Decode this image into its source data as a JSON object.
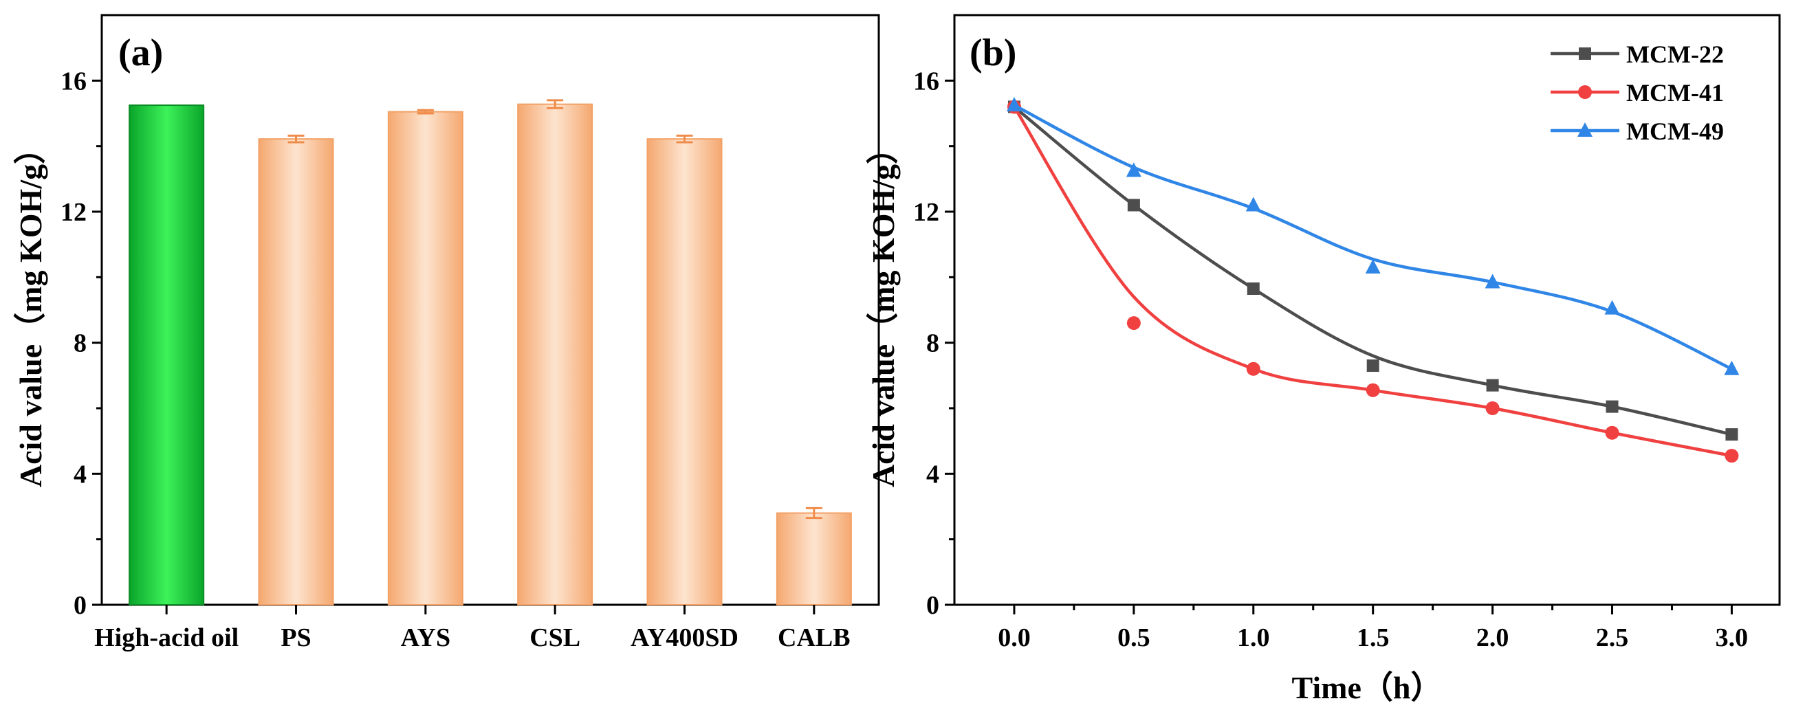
{
  "chart_data": [
    {
      "type": "bar",
      "panel_label": "(a)",
      "title": "",
      "xlabel": "",
      "ylabel": "Acid value（mg KOH/g）",
      "ylim": [
        0,
        18
      ],
      "yticks": [
        "0",
        "4",
        "8",
        "12",
        "16"
      ],
      "categories": [
        "High-acid oil",
        "PS",
        "AYS",
        "CSL",
        "AY400SD",
        "CALB"
      ],
      "values": [
        15.25,
        14.22,
        15.05,
        15.28,
        14.22,
        2.8
      ],
      "errors": [
        0,
        0.1,
        0.05,
        0.12,
        0.1,
        0.15
      ],
      "colors": {
        "first": "#1fd63f",
        "others": "#f7b98c",
        "error": "#f08c4a"
      }
    },
    {
      "type": "line",
      "panel_label": "(b)",
      "title": "",
      "xlabel": "Time（h）",
      "ylabel": "Acid value（mg KOH/g）",
      "xlim": [
        -0.25,
        3.2
      ],
      "ylim": [
        0,
        18
      ],
      "xticks": [
        "0.0",
        "0.5",
        "1.0",
        "1.5",
        "2.0",
        "2.5",
        "3.0"
      ],
      "yticks": [
        "0",
        "4",
        "8",
        "12",
        "16"
      ],
      "x": [
        0,
        0.5,
        1.0,
        1.5,
        2.0,
        2.5,
        3.0
      ],
      "legend_position": "top-right",
      "series": [
        {
          "name": "MCM-22",
          "marker": "square",
          "color": "#4d4d4d",
          "values": [
            15.2,
            12.2,
            9.65,
            7.3,
            6.7,
            6.05,
            5.2
          ],
          "fit": [
            15.2,
            12.2,
            9.65,
            7.6,
            6.7,
            6.05,
            5.2
          ]
        },
        {
          "name": "MCM-41",
          "marker": "circle",
          "color": "#f04040",
          "values": [
            15.2,
            8.6,
            7.2,
            6.55,
            6.0,
            5.25,
            4.55
          ],
          "fit": [
            15.2,
            9.4,
            7.2,
            6.55,
            6.0,
            5.25,
            4.55
          ]
        },
        {
          "name": "MCM-49",
          "marker": "triangle",
          "color": "#2f86e6",
          "values": [
            15.25,
            13.25,
            12.2,
            10.3,
            9.85,
            9.05,
            7.2
          ],
          "fit": [
            15.25,
            13.35,
            12.1,
            10.55,
            9.85,
            8.95,
            7.2
          ]
        }
      ]
    }
  ]
}
